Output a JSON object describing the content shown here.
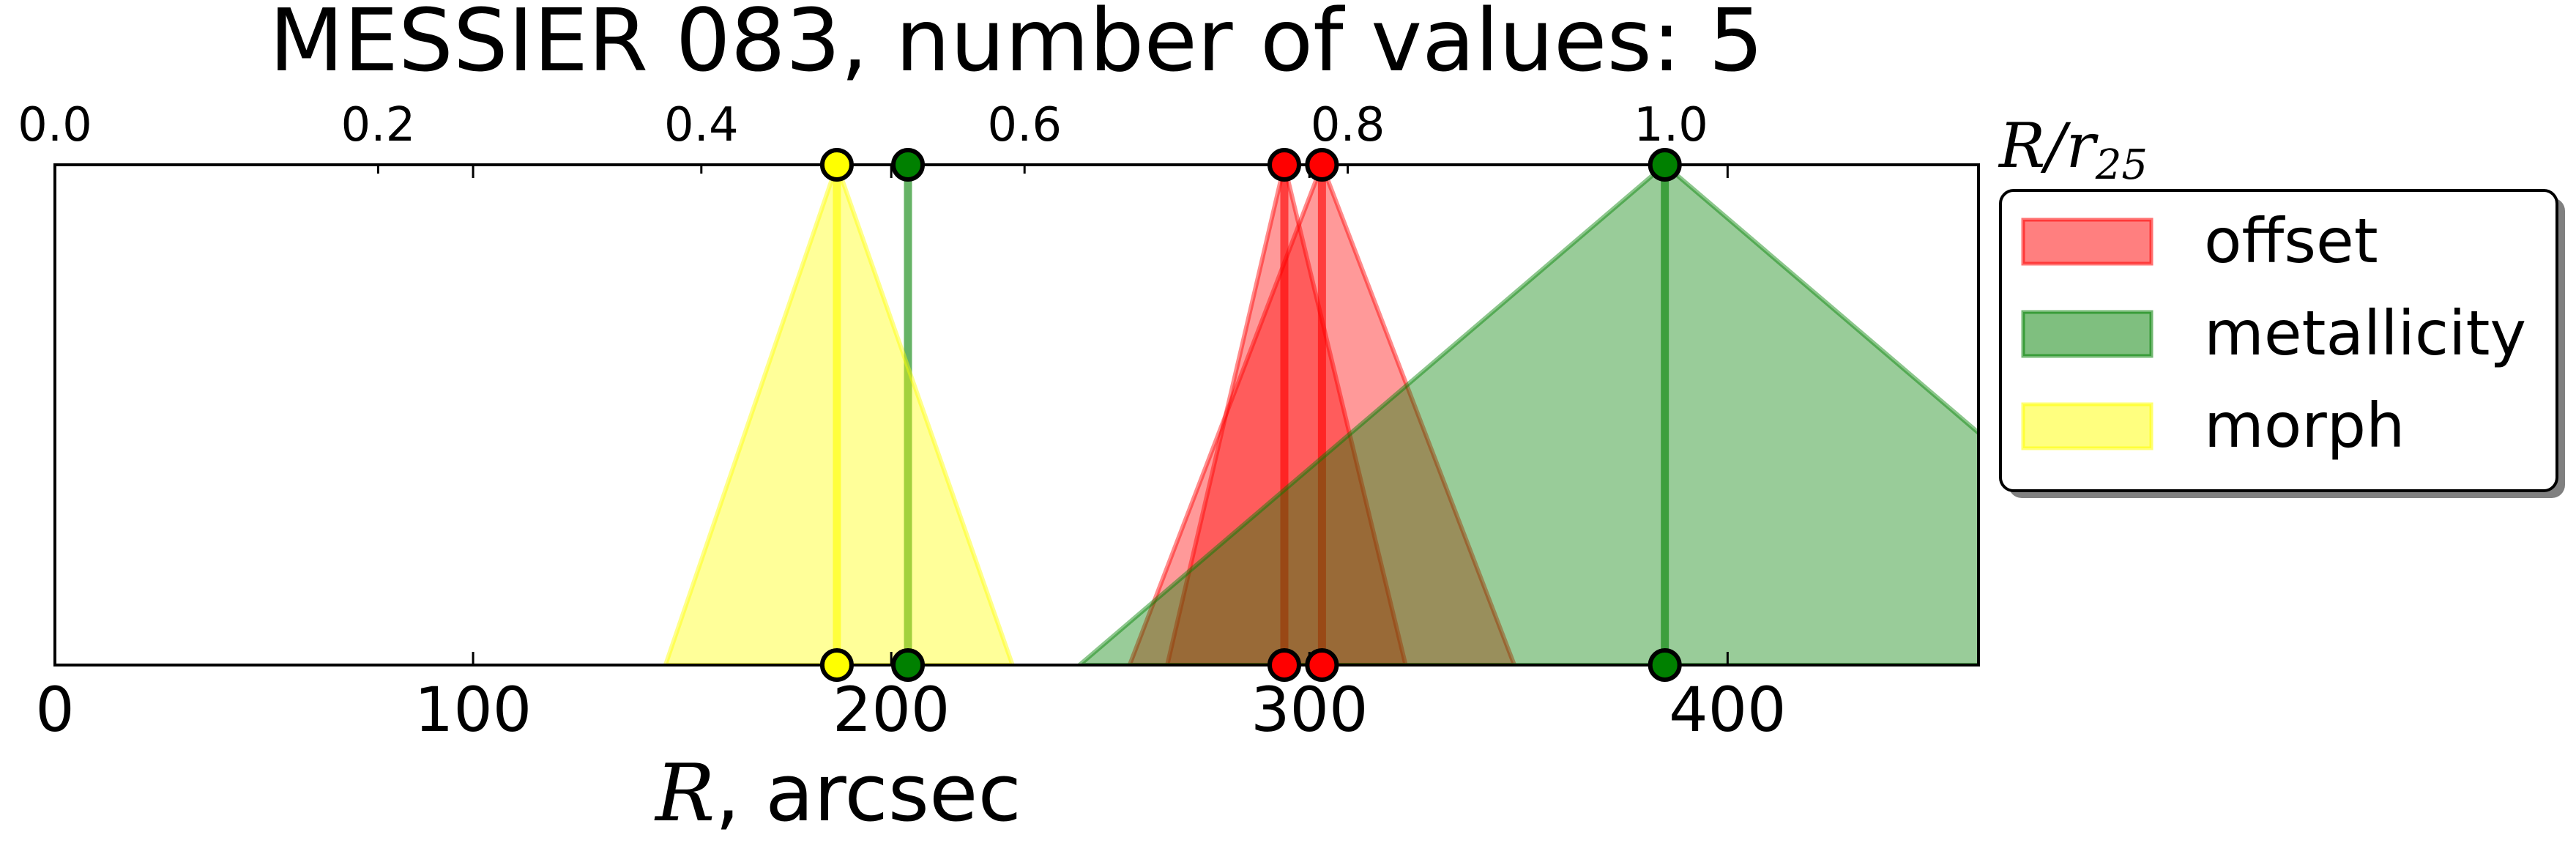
{
  "chart_data": {
    "type": "area",
    "title": "MESSIER 083, number of values: 5",
    "xlabel": {
      "symbol": "R",
      "rest": ", arcsec"
    },
    "x2label": {
      "symbol": "R/r",
      "subscript": "25"
    },
    "xlim": [
      0,
      460
    ],
    "x2lim": [
      0,
      1.1903
    ],
    "xticks": [
      {
        "value": 0,
        "label": "0"
      },
      {
        "value": 100,
        "label": "100"
      },
      {
        "value": 200,
        "label": "200"
      },
      {
        "value": 300,
        "label": "300"
      },
      {
        "value": 400,
        "label": "400"
      }
    ],
    "x2ticks": [
      {
        "value": 0.0,
        "label": "0.0"
      },
      {
        "value": 0.2,
        "label": "0.2"
      },
      {
        "value": 0.4,
        "label": "0.4"
      },
      {
        "value": 0.6,
        "label": "0.6"
      },
      {
        "value": 0.8,
        "label": "0.8"
      },
      {
        "value": 1.0,
        "label": "1.0"
      }
    ],
    "legend": {
      "placement": "outside right",
      "entries": [
        {
          "name": "offset",
          "color": "#ff0000"
        },
        {
          "name": "metallicity",
          "color": "#008000"
        },
        {
          "name": "morph",
          "color": "#ffff00"
        }
      ]
    },
    "series": [
      {
        "name": "offset",
        "color": "#ff0000",
        "values": [
          {
            "center": 294,
            "left": 266,
            "right": 323
          },
          {
            "center": 303,
            "left": 257,
            "right": 349
          }
        ]
      },
      {
        "name": "metallicity",
        "color": "#008000",
        "values": [
          {
            "center": 204,
            "left": 204,
            "right": 204
          },
          {
            "center": 385,
            "left": 245,
            "right": 525
          }
        ]
      },
      {
        "name": "morph",
        "color": "#ffff00",
        "values": [
          {
            "center": 187,
            "left": 146,
            "right": 229
          }
        ]
      }
    ]
  }
}
